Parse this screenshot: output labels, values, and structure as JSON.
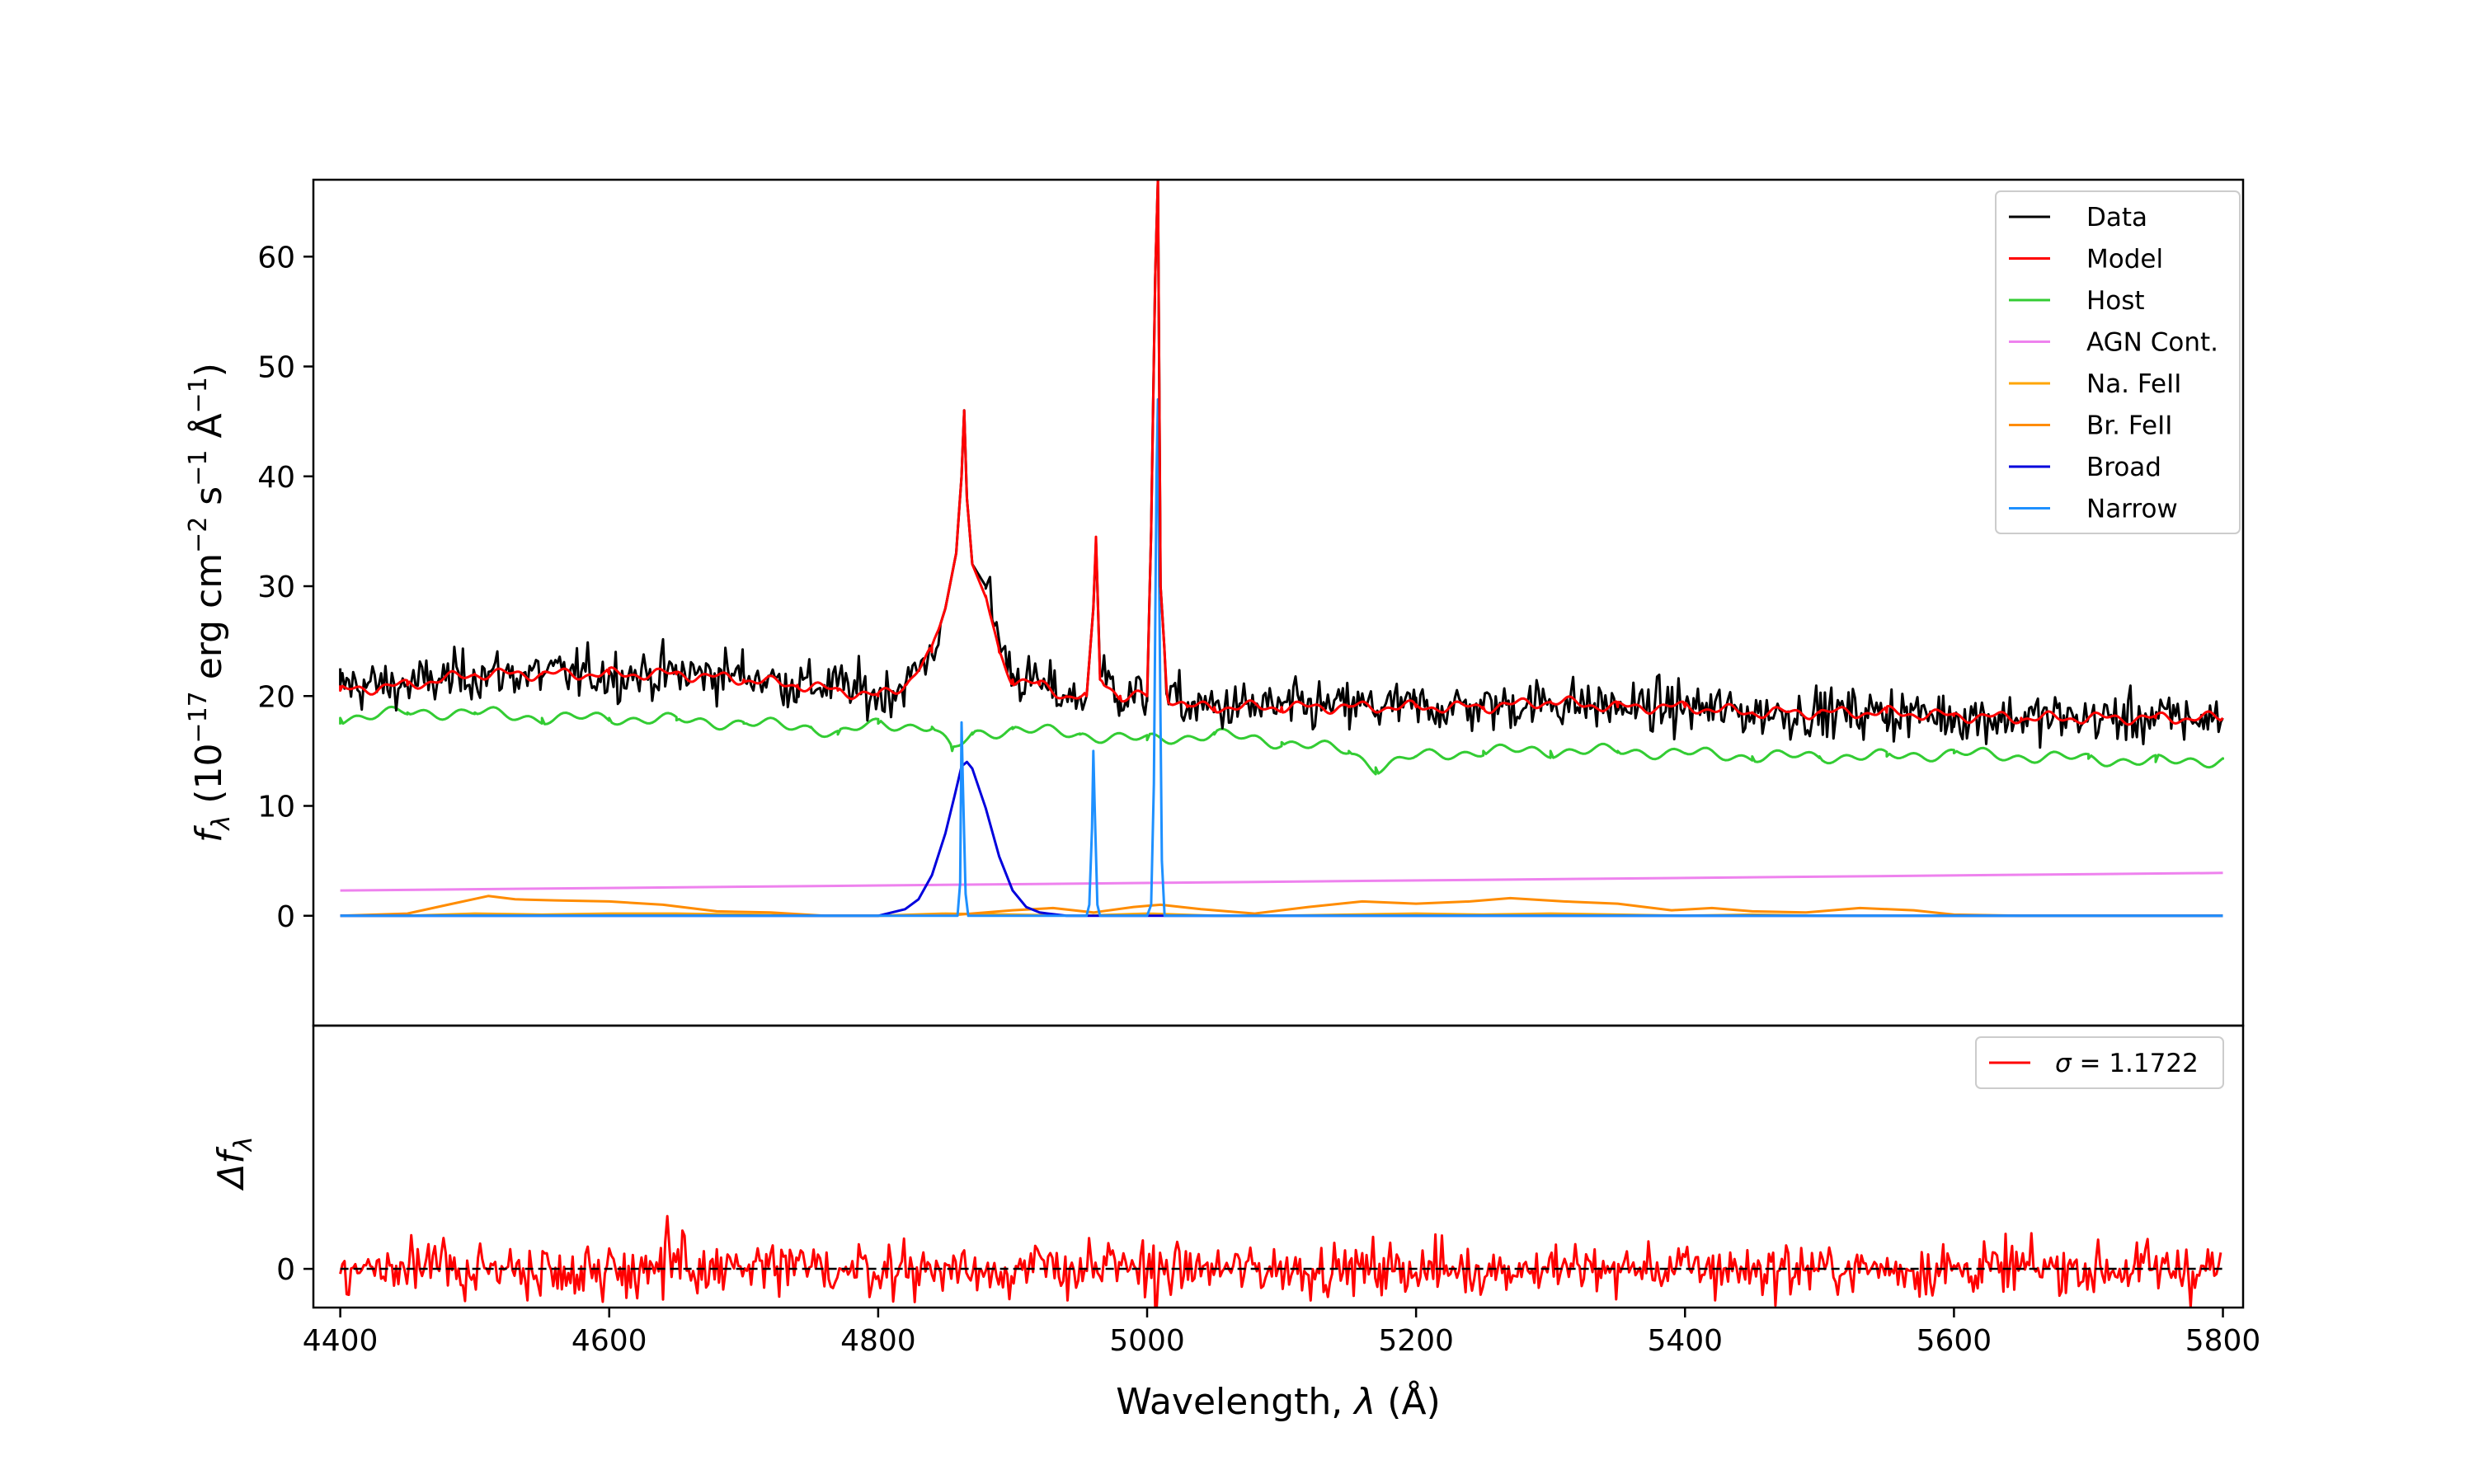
{
  "chart_data": [
    {
      "type": "line",
      "panel": "main",
      "ylabel": "f_λ (10^−17 erg cm^−2 s^−1 Å^−1)",
      "xlim": [
        4380,
        5815
      ],
      "ylim": [
        -10,
        67
      ],
      "xticks": [
        4400,
        4600,
        4800,
        5000,
        5200,
        5400,
        5600,
        5800
      ],
      "yticks": [
        0,
        10,
        20,
        30,
        40,
        50,
        60
      ],
      "legend_position": "top-right",
      "series": [
        {
          "name": "Data",
          "color": "#000000",
          "x": [
            4400,
            4450,
            4500,
            4550,
            4600,
            4650,
            4700,
            4740,
            4770,
            4800,
            4820,
            4840,
            4850,
            4858,
            4862,
            4864,
            4866,
            4870,
            4880,
            4890,
            4900,
            4920,
            4940,
            4955,
            4960,
            4962,
            4965,
            4980,
            5000,
            5003,
            5006,
            5008,
            5010,
            5015,
            5030,
            5050,
            5100,
            5150,
            5200,
            5250,
            5300,
            5350,
            5400,
            5450,
            5500,
            5550,
            5600,
            5650,
            5700,
            5750,
            5800
          ],
          "y": [
            21,
            21,
            22,
            22,
            22,
            22,
            22,
            21,
            21,
            20,
            21,
            24,
            28,
            33,
            40,
            46,
            38,
            32,
            30,
            25,
            22,
            21,
            20,
            20,
            28,
            34,
            22,
            20,
            20,
            35,
            58,
            67,
            30,
            20,
            19,
            19,
            19,
            19,
            19,
            19,
            19.5,
            19,
            19,
            18.5,
            18.5,
            18.5,
            18.2,
            18,
            18,
            18,
            18
          ]
        },
        {
          "name": "Model",
          "color": "#ff0000",
          "x": [
            4400,
            4450,
            4500,
            4550,
            4600,
            4650,
            4700,
            4740,
            4770,
            4800,
            4820,
            4840,
            4850,
            4858,
            4862,
            4864,
            4866,
            4870,
            4880,
            4890,
            4900,
            4920,
            4940,
            4955,
            4960,
            4962,
            4965,
            4980,
            5000,
            5003,
            5006,
            5008,
            5010,
            5015,
            5030,
            5050,
            5100,
            5150,
            5200,
            5250,
            5300,
            5350,
            5400,
            5450,
            5500,
            5550,
            5600,
            5650,
            5700,
            5750,
            5800
          ],
          "y": [
            20.5,
            21,
            22,
            22,
            22,
            22,
            21.5,
            21,
            20.5,
            20,
            21,
            24,
            28,
            33,
            40,
            46,
            38,
            32,
            29,
            24,
            21.5,
            21,
            20,
            20,
            28,
            34.5,
            21.5,
            20,
            20,
            35,
            58,
            67,
            30,
            20,
            19,
            19,
            19,
            19,
            19,
            19,
            19.5,
            19,
            19,
            18.5,
            18.5,
            18.5,
            18.2,
            18,
            18,
            18,
            18
          ]
        },
        {
          "name": "Host",
          "color": "#33cc33",
          "x": [
            4400,
            4450,
            4500,
            4550,
            4600,
            4650,
            4700,
            4750,
            4770,
            4800,
            4840,
            4855,
            4870,
            4900,
            4950,
            5000,
            5050,
            5100,
            5150,
            5170,
            5200,
            5250,
            5300,
            5350,
            5400,
            5450,
            5500,
            5550,
            5600,
            5650,
            5700,
            5750,
            5800
          ],
          "y": [
            18,
            18.5,
            18.5,
            18,
            18,
            17.8,
            17.5,
            17.2,
            16.5,
            17.5,
            17.2,
            15,
            16.5,
            17,
            16.5,
            16,
            16.5,
            15.8,
            15,
            13.5,
            14.5,
            15,
            15,
            15,
            14.8,
            14.5,
            14.5,
            14.5,
            14.8,
            14.5,
            14.3,
            14,
            14.2
          ]
        },
        {
          "name": "AGN Cont.",
          "color": "#ee82ee",
          "x": [
            4400,
            5800
          ],
          "y": [
            2.3,
            3.9
          ]
        },
        {
          "name": "Na. FeII",
          "color": "#ffa500",
          "x": [
            4400,
            4450,
            4500,
            4550,
            4600,
            4650,
            4700,
            4750,
            4800,
            4850,
            4900,
            4950,
            5000,
            5050,
            5100,
            5150,
            5200,
            5250,
            5300,
            5350,
            5400,
            5450,
            5500,
            5550,
            5600,
            5650,
            5700,
            5750,
            5800
          ],
          "y": [
            0,
            0,
            0.2,
            0.1,
            0.2,
            0.2,
            0.1,
            0,
            0,
            0.2,
            0.1,
            0,
            0.2,
            0,
            0,
            0.1,
            0.2,
            0.1,
            0.2,
            0.1,
            0,
            0.1,
            0,
            0,
            0,
            0,
            0,
            0,
            0
          ]
        },
        {
          "name": "Br. FeII",
          "color": "#ff8c00",
          "x": [
            4400,
            4450,
            4480,
            4510,
            4530,
            4560,
            4600,
            4640,
            4680,
            4720,
            4760,
            4800,
            4860,
            4900,
            4930,
            4960,
            4990,
            5010,
            5040,
            5080,
            5120,
            5160,
            5200,
            5240,
            5270,
            5310,
            5350,
            5390,
            5420,
            5450,
            5490,
            5530,
            5570,
            5600,
            5650,
            5800
          ],
          "y": [
            0,
            0.2,
            1,
            1.8,
            1.5,
            1.4,
            1.3,
            1,
            0.4,
            0.3,
            0,
            0,
            0.1,
            0.5,
            0.7,
            0.3,
            0.8,
            1,
            0.6,
            0.2,
            0.8,
            1.3,
            1.1,
            1.3,
            1.6,
            1.3,
            1.1,
            0.5,
            0.7,
            0.4,
            0.3,
            0.7,
            0.5,
            0.1,
            0,
            0
          ]
        },
        {
          "name": "Broad",
          "color": "#0000dd",
          "x": [
            4400,
            4800,
            4820,
            4830,
            4840,
            4850,
            4857,
            4862,
            4866,
            4870,
            4880,
            4890,
            4900,
            4910,
            4920,
            4940,
            5800
          ],
          "y": [
            0,
            0,
            0.6,
            1.5,
            3.7,
            7.5,
            11,
            13.6,
            14,
            13.4,
            9.8,
            5.4,
            2.3,
            0.8,
            0.3,
            0,
            0
          ]
        },
        {
          "name": "Narrow",
          "color": "#1e90ff",
          "x": [
            4400,
            4859,
            4861,
            4862,
            4863,
            4865,
            4867,
            4955,
            4957,
            4959,
            4960,
            4961,
            4963,
            4965,
            5000,
            5003,
            5005,
            5007,
            5008,
            5009,
            5011,
            5013,
            5800
          ],
          "y": [
            0,
            0,
            3,
            17.6,
            12,
            2,
            0,
            0,
            1,
            8,
            15,
            10,
            1,
            0,
            0,
            1,
            12,
            40,
            47,
            30,
            5,
            0,
            0
          ]
        }
      ]
    },
    {
      "type": "line",
      "panel": "residual",
      "ylabel": "Δf_λ",
      "xlabel": "Wavelength, λ (Å)",
      "xlim": [
        4380,
        5815
      ],
      "ylim": [
        -3.5,
        22
      ],
      "xticks": [
        4400,
        4600,
        4800,
        5000,
        5200,
        5400,
        5600,
        5800
      ],
      "yticks": [
        0
      ],
      "legend_position": "top-right",
      "series": [
        {
          "name": "σ = 1.1722",
          "color": "#ff0000",
          "sigma": 1.1722,
          "x_range": [
            4400,
            5800
          ]
        }
      ],
      "zero_line": true
    }
  ],
  "labels": {
    "main_ylabel_f": "f",
    "main_ylabel_sub": "λ",
    "main_ylabel_units": " (10",
    "main_ylabel_exp1": "−17",
    "main_ylabel_mid": " erg cm",
    "main_ylabel_exp2": "−2",
    "main_ylabel_s": " s",
    "main_ylabel_exp3": "−1",
    "main_ylabel_A": " Å",
    "main_ylabel_exp4": "−1",
    "main_ylabel_close": ")",
    "resid_ylabel_delta": "Δf",
    "resid_ylabel_sub": "λ",
    "xlabel_text": "Wavelength, ",
    "xlabel_lambda": "λ",
    "xlabel_unit": " (Å)",
    "sigma_label_sym": "σ",
    "sigma_label_val": " = 1.1722"
  }
}
